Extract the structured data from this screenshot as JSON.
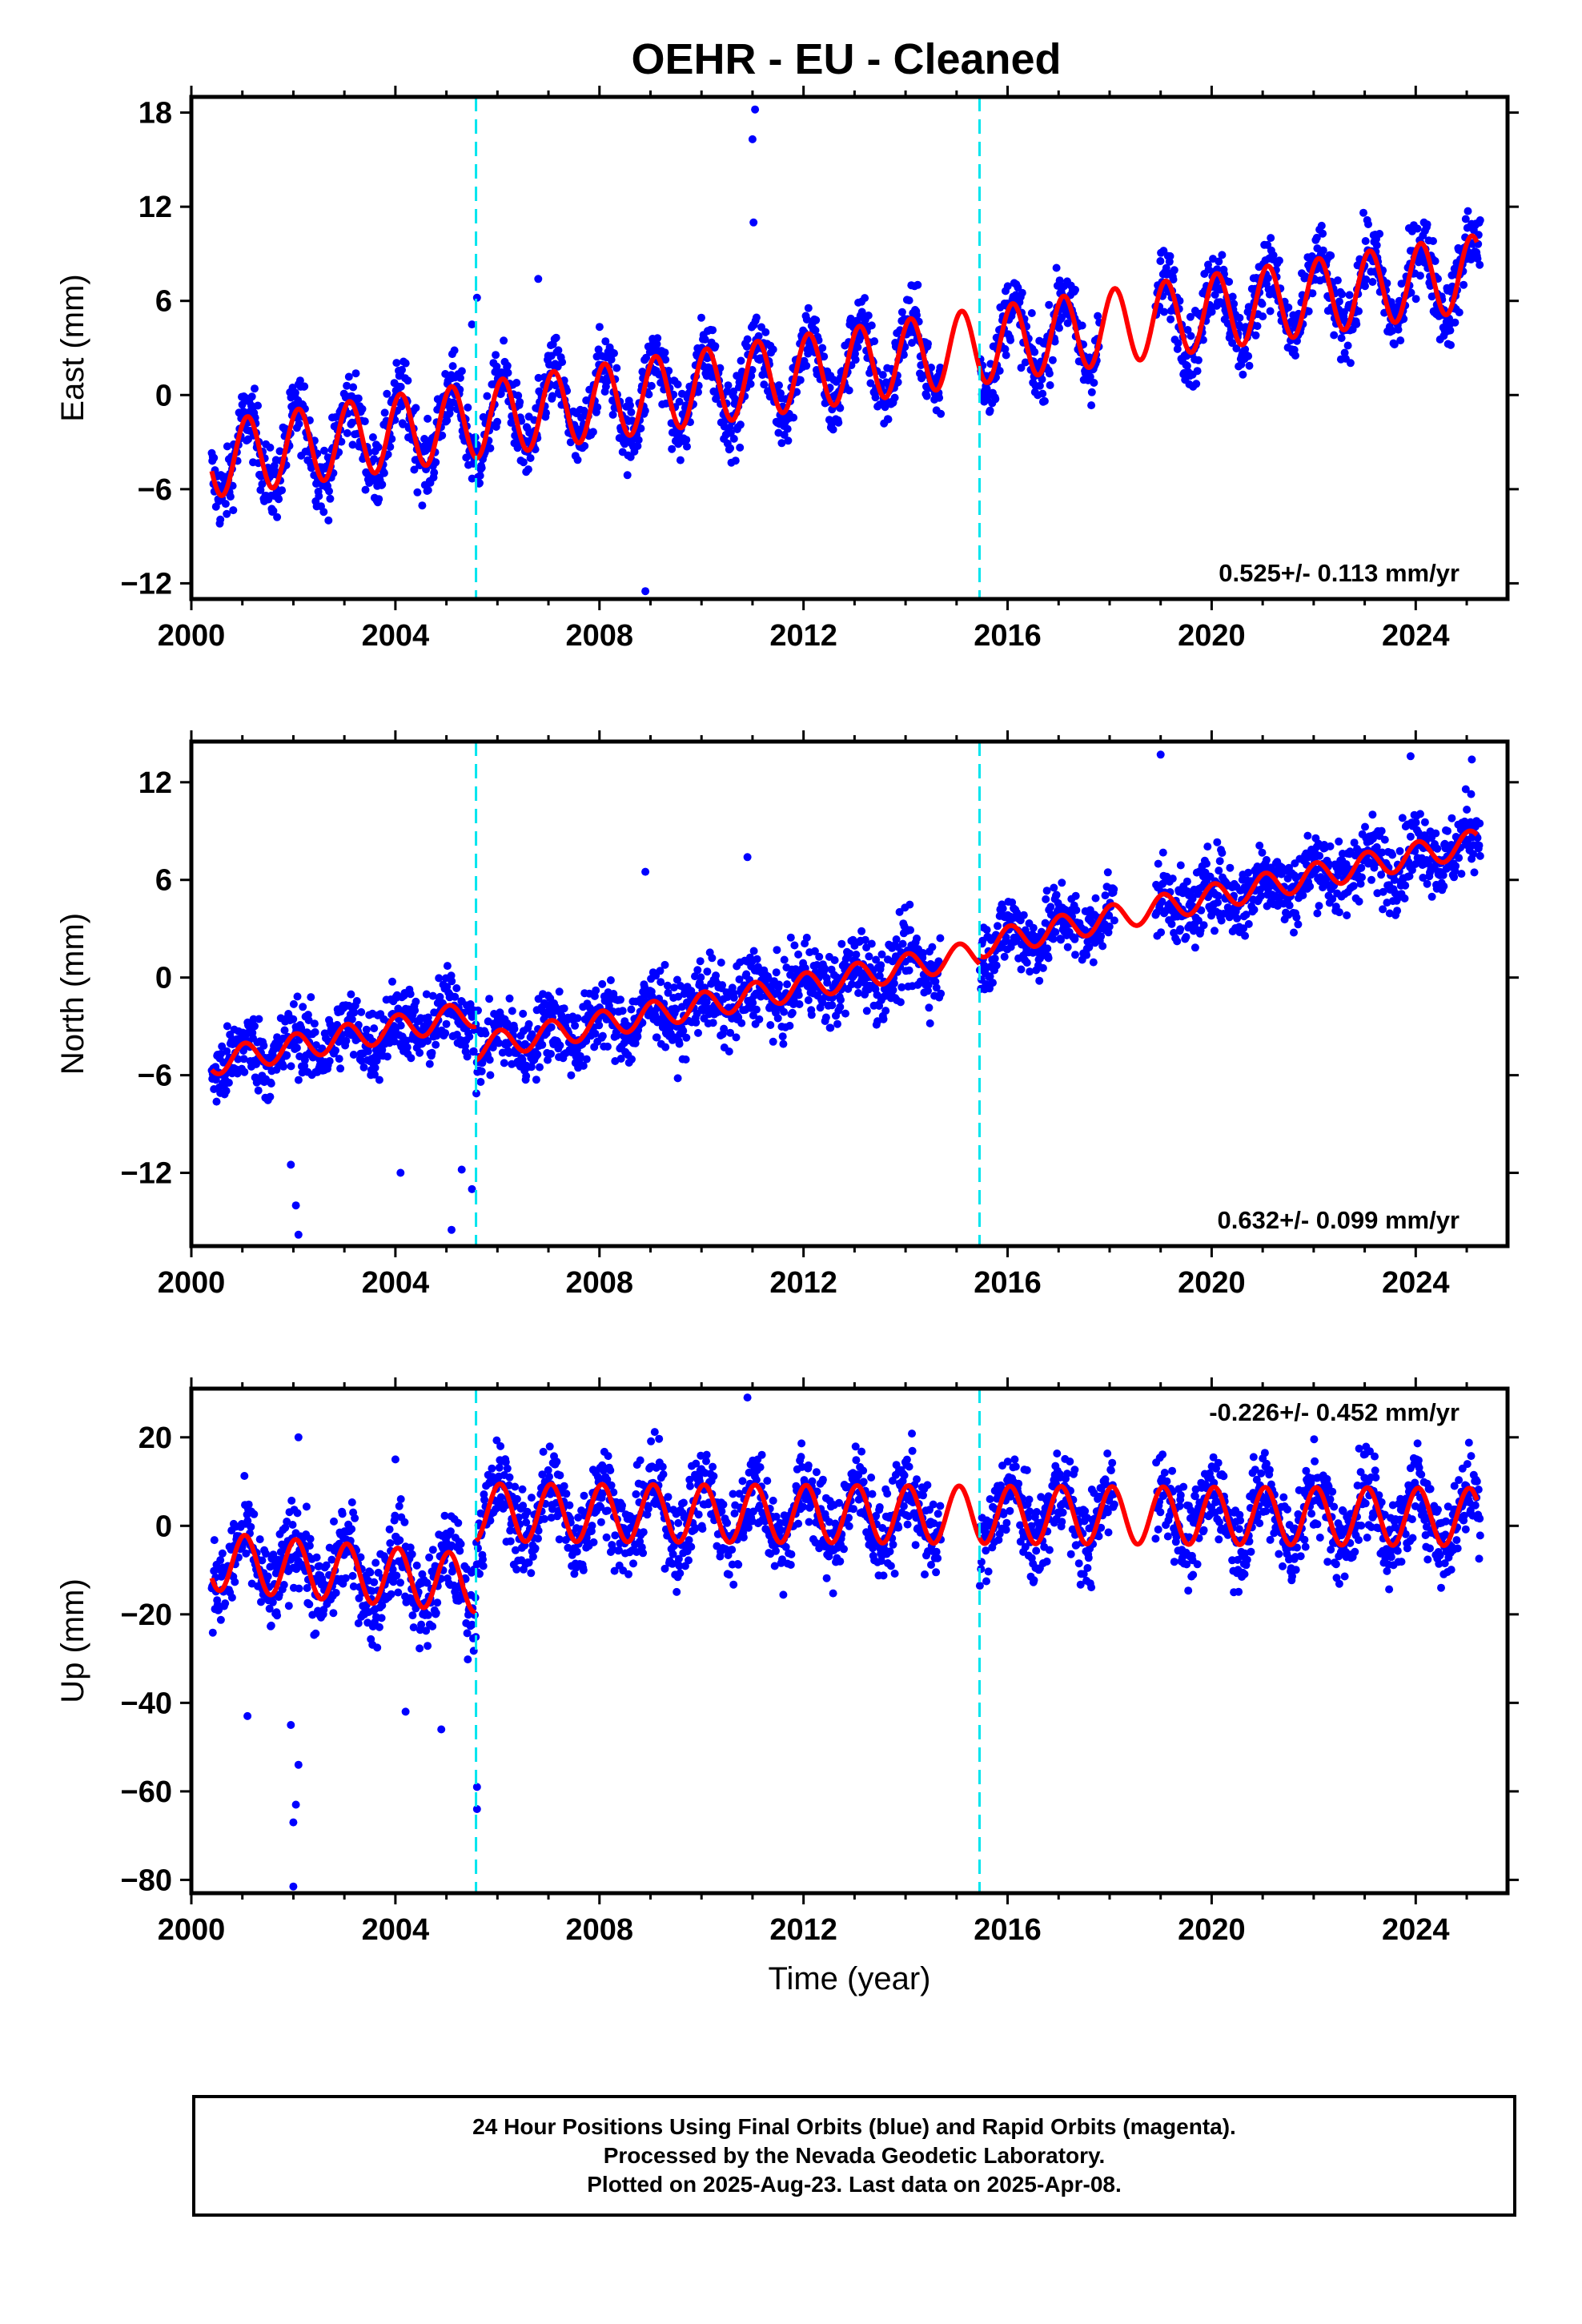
{
  "title": "OEHR  - EU - Cleaned",
  "chart_data": [
    {
      "type": "scatter",
      "component": "East",
      "ylabel": "East (mm)",
      "xlim": [
        2000.0,
        2025.8
      ],
      "ylim": [
        -13,
        19
      ],
      "yticks": [
        -12,
        -6,
        0,
        6,
        12,
        18
      ],
      "xticks": [
        2000,
        2004,
        2008,
        2012,
        2016,
        2020,
        2024
      ],
      "rate_label": "0.525+/- 0.113 mm/yr",
      "rate_position": "bottom-right",
      "offset_lines": [
        2005.58,
        2015.45
      ],
      "series": [
        {
          "name": "Final Orbits",
          "color": "#0000ff",
          "style": "points"
        },
        {
          "name": "Model fit",
          "color": "#ff0000",
          "style": "line"
        }
      ],
      "model": {
        "intercept_at_2000": -4.3,
        "slope": 0.48,
        "amplitude": 2.4,
        "phase": 0.15
      },
      "gaps": [
        [
          2014.7,
          2015.45
        ],
        [
          2017.8,
          2018.9
        ]
      ],
      "outliers": [
        [
          2011.05,
          18.2
        ],
        [
          2011.0,
          16.3
        ],
        [
          2011.02,
          11.0
        ],
        [
          2008.9,
          -12.5
        ],
        [
          2005.6,
          6.2
        ],
        [
          2005.5,
          4.5
        ],
        [
          2006.8,
          7.4
        ]
      ]
    },
    {
      "type": "scatter",
      "component": "North",
      "ylabel": "North (mm)",
      "xlim": [
        2000.0,
        2025.8
      ],
      "ylim": [
        -16.5,
        14.5
      ],
      "yticks": [
        -12,
        -6,
        0,
        6,
        12
      ],
      "xticks": [
        2000,
        2004,
        2008,
        2012,
        2016,
        2020,
        2024
      ],
      "rate_label": "0.632+/- 0.099 mm/yr",
      "rate_position": "bottom-right",
      "offset_lines": [
        2005.58,
        2015.45
      ],
      "series": [
        {
          "name": "Final Orbits",
          "color": "#0000ff",
          "style": "points"
        },
        {
          "name": "Model fit",
          "color": "#ff0000",
          "style": "line"
        }
      ],
      "model_segments": [
        {
          "x": [
            2000.4,
            2005.58
          ],
          "y": [
            -5.2,
            -2.2
          ]
        },
        {
          "x": [
            2005.58,
            2015.45
          ],
          "y": [
            -4.3,
            1.5
          ]
        },
        {
          "x": [
            2015.45,
            2025.2
          ],
          "y": [
            2.0,
            8.3
          ]
        }
      ],
      "gaps": [
        [
          2014.7,
          2015.45
        ],
        [
          2018.1,
          2018.9
        ]
      ],
      "outliers": [
        [
          2002.05,
          -14.0
        ],
        [
          2002.1,
          -15.8
        ],
        [
          2001.95,
          -11.5
        ],
        [
          2004.1,
          -12.0
        ],
        [
          2005.1,
          -15.5
        ],
        [
          2005.5,
          -13.0
        ],
        [
          2005.3,
          -11.8
        ],
        [
          2008.9,
          6.5
        ],
        [
          2010.9,
          7.4
        ],
        [
          2019.0,
          13.7
        ],
        [
          2023.9,
          13.6
        ],
        [
          2025.1,
          13.4
        ]
      ]
    },
    {
      "type": "scatter",
      "component": "Up",
      "ylabel": "Up (mm)",
      "xlabel": "Time (year)",
      "xlim": [
        2000.0,
        2025.8
      ],
      "ylim": [
        -83,
        31
      ],
      "yticks": [
        -80,
        -60,
        -40,
        -20,
        0,
        20
      ],
      "xticks": [
        2000,
        2004,
        2008,
        2012,
        2016,
        2020,
        2024
      ],
      "rate_label": "-0.226+/- 0.452 mm/yr",
      "rate_position": "top-right",
      "offset_lines": [
        2005.58,
        2015.45
      ],
      "series": [
        {
          "name": "Final Orbits",
          "color": "#0000ff",
          "style": "points"
        },
        {
          "name": "Model fit",
          "color": "#ff0000",
          "style": "line"
        }
      ],
      "model_segments": [
        {
          "x": [
            2000.4,
            2005.58
          ],
          "y": [
            -8,
            -13
          ]
        },
        {
          "x": [
            2005.58,
            2025.2
          ],
          "y": [
            3,
            2
          ]
        }
      ],
      "model_amplitude": 6.5,
      "gaps": [
        [
          2014.7,
          2015.45
        ],
        [
          2018.1,
          2018.9
        ]
      ],
      "outliers": [
        [
          2002.0,
          -81.5
        ],
        [
          2002.0,
          -67
        ],
        [
          2002.05,
          -63
        ],
        [
          2002.1,
          -54
        ],
        [
          2001.95,
          -45
        ],
        [
          2004.2,
          -42
        ],
        [
          2004.9,
          -46
        ],
        [
          2001.1,
          -43
        ],
        [
          2005.6,
          -59
        ],
        [
          2005.6,
          -64
        ],
        [
          2010.9,
          29
        ],
        [
          2002.1,
          20
        ],
        [
          2004.0,
          15
        ]
      ]
    }
  ],
  "footer": {
    "line1": "24 Hour Positions Using Final Orbits (blue) and Rapid Orbits (magenta).",
    "line2": "Processed by the Nevada Geodetic Laboratory.",
    "line3": "Plotted on 2025-Aug-23. Last data on 2025-Apr-08."
  }
}
